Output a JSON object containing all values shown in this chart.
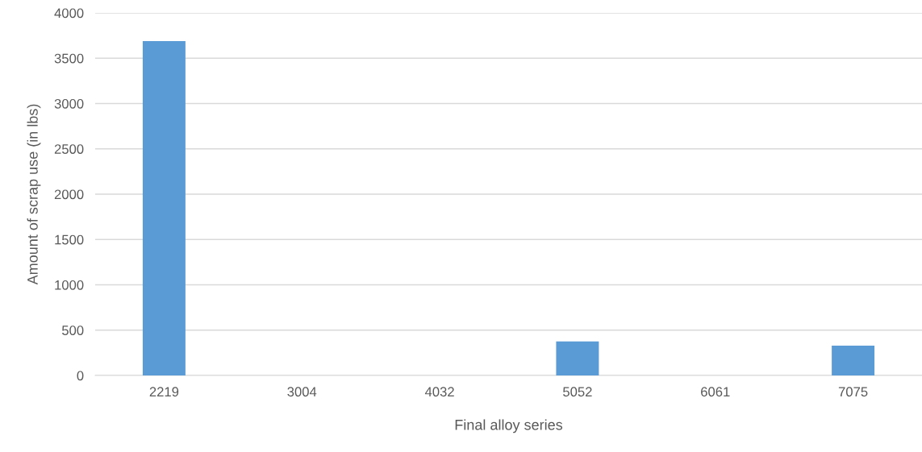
{
  "chart_data": {
    "type": "bar",
    "xlabel": "Final alloy series",
    "ylabel": "Amount of scrap use (in lbs)",
    "categories": [
      "2219",
      "3004",
      "4032",
      "5052",
      "6061",
      "7075"
    ],
    "values": [
      3690,
      0,
      0,
      375,
      0,
      330
    ],
    "color": "#5b9bd5",
    "ylim": [
      0,
      4000
    ],
    "yticks": [
      0,
      500,
      1000,
      1500,
      2000,
      2500,
      3000,
      3500,
      4000
    ],
    "grid": "y",
    "legend": false
  }
}
